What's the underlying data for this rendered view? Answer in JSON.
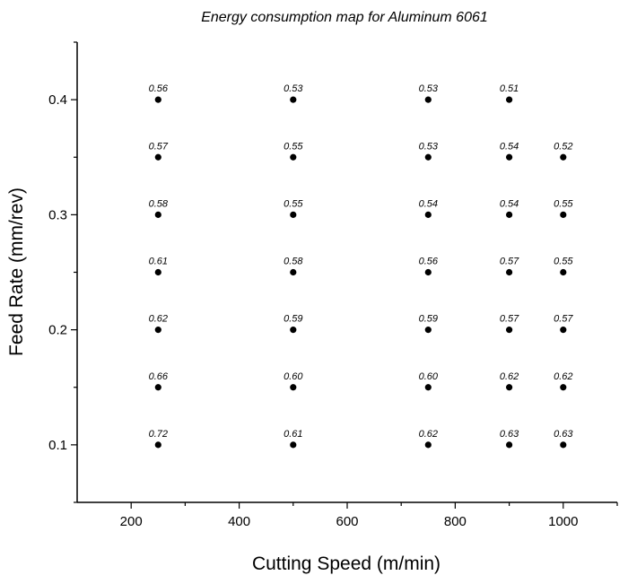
{
  "chart_data": {
    "type": "scatter",
    "title": "Energy consumption map for Aluminum 6061",
    "xlabel": "Cutting Speed (m/min)",
    "ylabel": "Feed Rate (mm/rev)",
    "xlim": [
      100,
      1100
    ],
    "ylim": [
      0.05,
      0.45
    ],
    "x_ticks": [
      200,
      400,
      600,
      800,
      1000
    ],
    "y_ticks": [
      0.1,
      0.2,
      0.3,
      0.4
    ],
    "x_tick_labels": [
      "200",
      "400",
      "600",
      "800",
      "1000"
    ],
    "y_tick_labels": [
      "0.1",
      "0.2",
      "0.3",
      "0.4"
    ],
    "points": [
      {
        "x": 250,
        "y": 0.4,
        "label": "0.56"
      },
      {
        "x": 250,
        "y": 0.35,
        "label": "0.57"
      },
      {
        "x": 250,
        "y": 0.3,
        "label": "0.58"
      },
      {
        "x": 250,
        "y": 0.25,
        "label": "0.61"
      },
      {
        "x": 250,
        "y": 0.2,
        "label": "0.62"
      },
      {
        "x": 250,
        "y": 0.15,
        "label": "0.66"
      },
      {
        "x": 250,
        "y": 0.1,
        "label": "0.72"
      },
      {
        "x": 500,
        "y": 0.4,
        "label": "0.53"
      },
      {
        "x": 500,
        "y": 0.35,
        "label": "0.55"
      },
      {
        "x": 500,
        "y": 0.3,
        "label": "0.55"
      },
      {
        "x": 500,
        "y": 0.25,
        "label": "0.58"
      },
      {
        "x": 500,
        "y": 0.2,
        "label": "0.59"
      },
      {
        "x": 500,
        "y": 0.15,
        "label": "0.60"
      },
      {
        "x": 500,
        "y": 0.1,
        "label": "0.61"
      },
      {
        "x": 750,
        "y": 0.4,
        "label": "0.53"
      },
      {
        "x": 750,
        "y": 0.35,
        "label": "0.53"
      },
      {
        "x": 750,
        "y": 0.3,
        "label": "0.54"
      },
      {
        "x": 750,
        "y": 0.25,
        "label": "0.56"
      },
      {
        "x": 750,
        "y": 0.2,
        "label": "0.59"
      },
      {
        "x": 750,
        "y": 0.15,
        "label": "0.60"
      },
      {
        "x": 750,
        "y": 0.1,
        "label": "0.62"
      },
      {
        "x": 900,
        "y": 0.4,
        "label": "0.51"
      },
      {
        "x": 900,
        "y": 0.35,
        "label": "0.54"
      },
      {
        "x": 900,
        "y": 0.3,
        "label": "0.54"
      },
      {
        "x": 900,
        "y": 0.25,
        "label": "0.57"
      },
      {
        "x": 900,
        "y": 0.2,
        "label": "0.57"
      },
      {
        "x": 900,
        "y": 0.15,
        "label": "0.62"
      },
      {
        "x": 900,
        "y": 0.1,
        "label": "0.63"
      },
      {
        "x": 1000,
        "y": 0.35,
        "label": "0.52"
      },
      {
        "x": 1000,
        "y": 0.3,
        "label": "0.55"
      },
      {
        "x": 1000,
        "y": 0.25,
        "label": "0.55"
      },
      {
        "x": 1000,
        "y": 0.2,
        "label": "0.57"
      },
      {
        "x": 1000,
        "y": 0.15,
        "label": "0.62"
      },
      {
        "x": 1000,
        "y": 0.1,
        "label": "0.63"
      }
    ]
  }
}
